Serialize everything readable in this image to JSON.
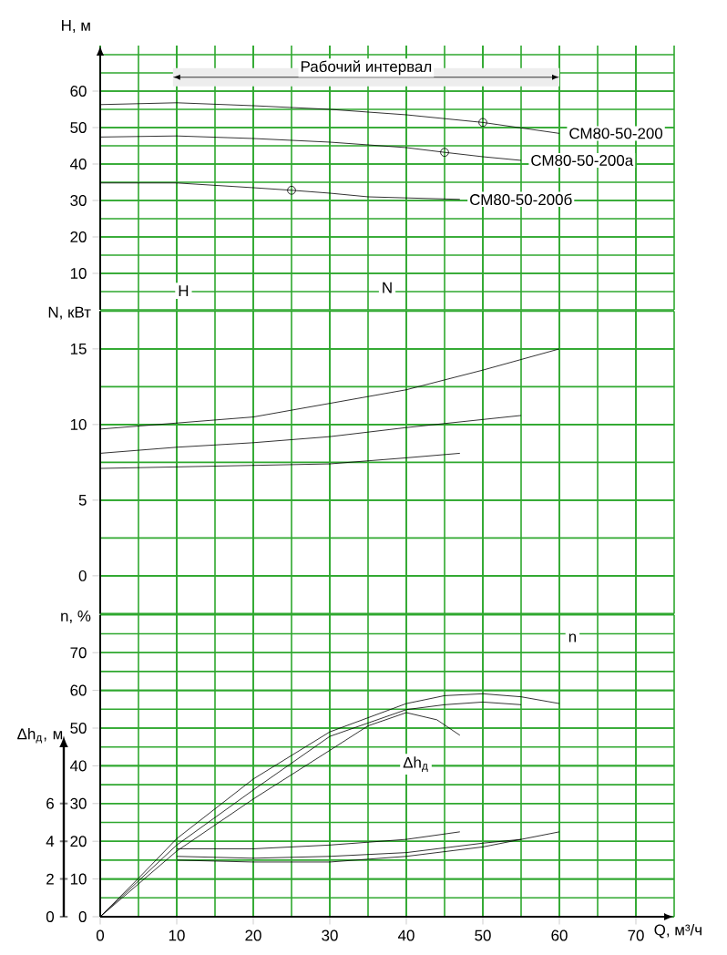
{
  "chart_data": [
    {
      "type": "line",
      "ylabel": "H, м",
      "xlim": [
        0,
        75
      ],
      "ylim": [
        0,
        72.5
      ],
      "xticks": [
        0,
        10,
        20,
        30,
        40,
        50,
        60,
        70
      ],
      "yticks": [
        10,
        20,
        30,
        40,
        50,
        60
      ],
      "grid": true,
      "tick_labels": "y",
      "annotations": [
        "H"
      ],
      "bands": [
        {
          "axis": "x",
          "from": 9.5,
          "to": 60,
          "label": "Рабочий интервал"
        }
      ],
      "series": [
        {
          "name": "СМ80-50-200",
          "color": "#000000",
          "x": [
            0,
            10,
            20,
            30,
            40,
            50,
            60
          ],
          "values": [
            56.3,
            56.8,
            56,
            55,
            53.5,
            51.4,
            48.4
          ]
        },
        {
          "name": "СМ80-50-200а",
          "color": "#000000",
          "x": [
            0,
            10,
            20,
            30,
            40,
            45,
            50,
            55
          ],
          "values": [
            47.4,
            47.7,
            47,
            46,
            44.5,
            43.2,
            42,
            41
          ]
        },
        {
          "name": "СМ80-50-200б",
          "color": "#000000",
          "x": [
            0,
            10,
            20,
            25,
            30,
            35,
            40,
            47
          ],
          "values": [
            34.8,
            34.8,
            33.5,
            32.8,
            32,
            31,
            30.7,
            30.3
          ]
        },
        {
          "type": "scatter",
          "marker": "circle",
          "color": "#000000",
          "x": [
            50,
            45,
            25
          ],
          "values": [
            51.4,
            43.2,
            32.8
          ]
        }
      ]
    },
    {
      "type": "line",
      "ylabel": "N, кВт",
      "xlim": [
        0,
        75
      ],
      "ylim": [
        -2.5,
        17.5
      ],
      "xticks": [
        0,
        10,
        20,
        30,
        40,
        50,
        60,
        70
      ],
      "yticks": [
        0,
        5,
        10,
        15
      ],
      "grid": true,
      "tick_labels": "y",
      "annotations": [
        "N"
      ],
      "series": [
        {
          "color": "#000000",
          "x": [
            0,
            10,
            20,
            30,
            40,
            50,
            60
          ],
          "values": [
            9.7,
            10.1,
            10.5,
            11.4,
            12.3,
            13.6,
            15
          ]
        },
        {
          "color": "#000000",
          "x": [
            0,
            10,
            20,
            30,
            40,
            55
          ],
          "values": [
            8.1,
            8.5,
            8.8,
            9.2,
            9.8,
            10.6
          ]
        },
        {
          "color": "#000000",
          "x": [
            0,
            10,
            20,
            30,
            40,
            47
          ],
          "values": [
            7.1,
            7.2,
            7.3,
            7.4,
            7.8,
            8.1
          ]
        }
      ]
    },
    {
      "type": "line",
      "xlabel": "Q, м³/ч",
      "ylabel": "n, %",
      "y2label": "Δh$_{д}$, м",
      "xlim": [
        0,
        75
      ],
      "ylim": [
        0,
        80
      ],
      "xticks": [
        0,
        10,
        20,
        30,
        40,
        50,
        60,
        70
      ],
      "yticks": [
        0,
        10,
        20,
        30,
        40,
        50,
        60,
        70
      ],
      "y2lim": [
        0,
        16
      ],
      "y2ticks": [
        0,
        2,
        4,
        6
      ],
      "grid": true,
      "annotations": [
        "n",
        "Δh$_{д}$"
      ],
      "series": [
        {
          "color": "#000000",
          "x": [
            0,
            5,
            10,
            20,
            30,
            40,
            45,
            50,
            55,
            60
          ],
          "values": [
            0,
            10.2,
            20.7,
            36.5,
            49,
            56.5,
            58.6,
            59.1,
            58.3,
            56.5
          ]
        },
        {
          "color": "#000000",
          "x": [
            0,
            10,
            20,
            30,
            40,
            45,
            50,
            55
          ],
          "values": [
            0,
            19,
            33.6,
            47.8,
            54.9,
            56.2,
            56.9,
            56.2
          ]
        },
        {
          "color": "#000000",
          "x": [
            0,
            10,
            20,
            30,
            35,
            40,
            44,
            47
          ],
          "values": [
            0,
            17.4,
            31.2,
            44.1,
            50.6,
            54.1,
            52.2,
            48.1
          ]
        },
        {
          "color": "#000000",
          "axis": "y2",
          "x": [
            10,
            20,
            30,
            40,
            50,
            60
          ],
          "values": [
            3,
            2.9,
            2.9,
            3.2,
            3.7,
            4.5
          ]
        },
        {
          "color": "#000000",
          "axis": "y2",
          "x": [
            10,
            20,
            30,
            40,
            50,
            55
          ],
          "values": [
            3.2,
            3.1,
            3.2,
            3.4,
            3.9,
            4.1
          ]
        },
        {
          "color": "#000000",
          "axis": "y2",
          "x": [
            10,
            20,
            30,
            40,
            47
          ],
          "values": [
            3.6,
            3.6,
            3.8,
            4.1,
            4.5
          ]
        }
      ]
    }
  ]
}
